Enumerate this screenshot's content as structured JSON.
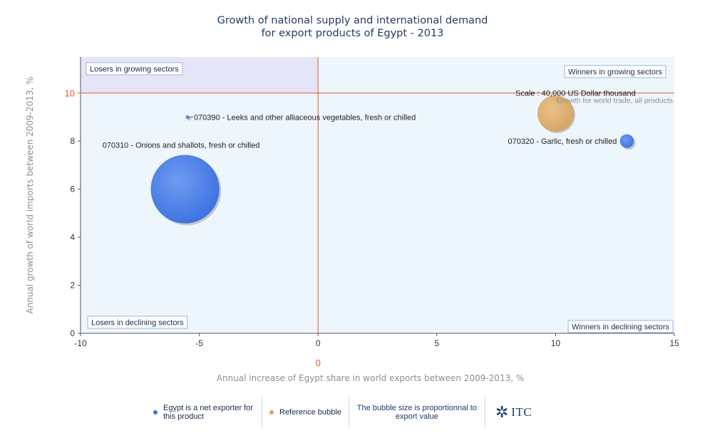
{
  "title": {
    "line1": "Growth of national supply and international demand",
    "line2": "for export products of Egypt - 2013"
  },
  "chart_data": {
    "type": "scatter",
    "title": "Growth of national supply and international demand for export products of Egypt - 2013",
    "xlabel": "Annual increase of Egypt share in world exports between 2009-2013, %",
    "ylabel": "Annual growth of world imports between 2009-2013, %",
    "xlim": [
      -10,
      15
    ],
    "ylim": [
      0,
      11.5
    ],
    "x_ticks": [
      -10,
      -5,
      0,
      5,
      10,
      15
    ],
    "y_ticks": [
      0,
      2,
      4,
      6,
      8,
      10
    ],
    "reference_lines": {
      "x": 0,
      "y": 10,
      "x_label": "0",
      "y_label": "10"
    },
    "quadrants": {
      "top_left": "Losers in growing sectors",
      "top_right": "Winners in growing sectors",
      "bottom_left": "Losers in declining sectors",
      "bottom_right": "Winners in declining sectors"
    },
    "series": [
      {
        "name": "Egypt is a net exporter for this product",
        "color": "#3d72e0",
        "points": [
          {
            "label": "070390 - Leeks and other alliaceous vegetables, fresh or chilled",
            "x": -5.5,
            "y": 9.0,
            "size": 1
          },
          {
            "label": "070310 - Onions and shallots, fresh or chilled",
            "x": -5.6,
            "y": 6.0,
            "size": 500
          },
          {
            "label": "070320 - Garlic, fresh or chilled",
            "x": 13.0,
            "y": 8.0,
            "size": 20
          }
        ]
      },
      {
        "name": "Reference bubble",
        "color": "#d7a465",
        "points": [
          {
            "label": "Scale : 40,000 US Dollar thousand",
            "x": 10.0,
            "y": 9.15,
            "size": 140
          }
        ]
      }
    ],
    "annotations": [
      "Growth for world trade, all products"
    ],
    "legend_note": "The bubble size is proportionnal to export value",
    "grid": false
  },
  "legend": {
    "item1": "Egypt is a net exporter for this product",
    "item2": "Reference bubble",
    "note": "The bubble size is proportionnal to export value",
    "logo": "ITC"
  },
  "colors": {
    "title": "#1f3a5f",
    "ref_line": "#e8582c",
    "plot_bg": "#eef6fd",
    "top_left_bg": "#e6e4f7",
    "egypt_bubble": "#3d72e0",
    "reference_bubble": "#d7a465"
  }
}
